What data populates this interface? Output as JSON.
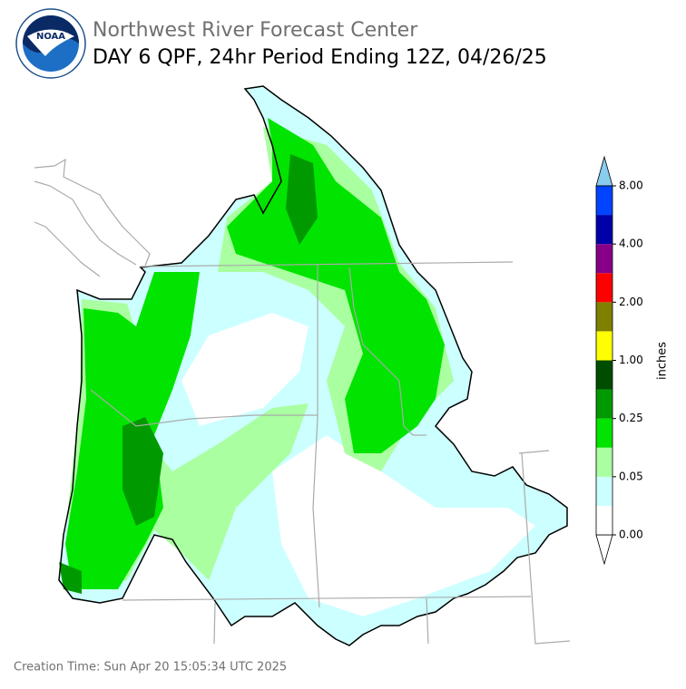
{
  "header": {
    "org": "Northwest River Forecast Center",
    "title": "DAY 6 QPF, 24hr Period Ending 12Z, 04/26/25",
    "logo": "NOAA"
  },
  "colorbar": {
    "label": "inches",
    "ticks": [
      "0.00",
      "0.05",
      "0.25",
      "1.00",
      "2.00",
      "4.00",
      "8.00"
    ],
    "colors": [
      "#ffffff",
      "#ccffff",
      "#aaffa0",
      "#00e400",
      "#009a00",
      "#004d00",
      "#ffff00",
      "#808000",
      "#ff0000",
      "#880088",
      "#0000aa",
      "#0044ff"
    ],
    "over_color": "#88ccee",
    "under_color": "#ffffff"
  },
  "footer": {
    "creation_time": "Creation Time: Sun Apr 20 15:05:34 UTC 2025"
  }
}
